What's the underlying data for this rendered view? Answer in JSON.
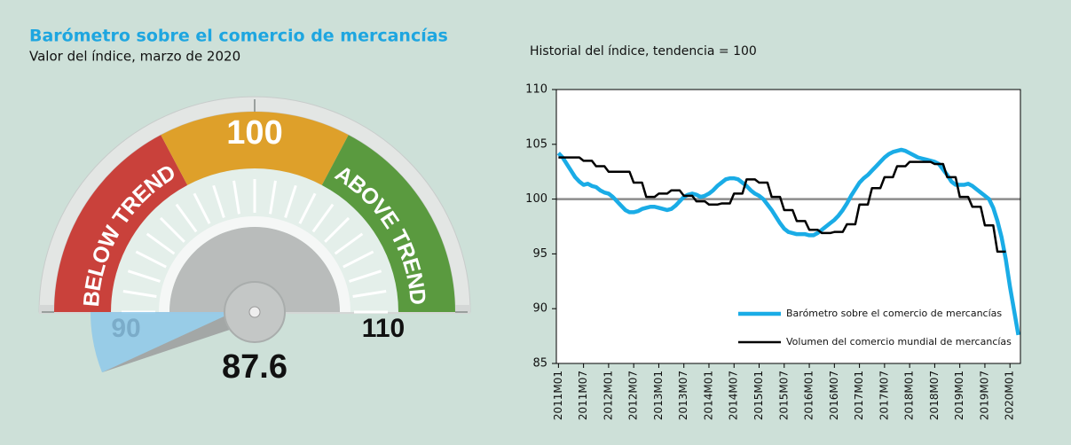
{
  "chart_data": [
    {
      "type": "gauge",
      "title": "Barómetro sobre el comercio de mercancías",
      "subtitle": "Valor del índice, marzo de 2020",
      "lim": [
        90,
        110
      ],
      "ticks": [
        90,
        100,
        110
      ],
      "value": 87.6,
      "zones": [
        {
          "label": "BELOW TREND",
          "from": 90,
          "to": 96.9,
          "color": "#c9413b"
        },
        {
          "from": 96.9,
          "to": 103.1,
          "color": "#dea02a"
        },
        {
          "label": "ABOVE TREND",
          "from": 103.1,
          "to": 110,
          "color": "#5a9a3f"
        }
      ]
    },
    {
      "type": "line",
      "title": "Historial del índice, tendencia = 100",
      "categories": [
        "2011M01",
        null,
        null,
        null,
        null,
        null,
        "2011M07",
        null,
        null,
        null,
        null,
        null,
        "2012M01",
        null,
        null,
        null,
        null,
        null,
        "2012M07",
        null,
        null,
        null,
        null,
        null,
        "2013M01",
        null,
        null,
        null,
        null,
        null,
        "2013M07",
        null,
        null,
        null,
        null,
        null,
        "2014M01",
        null,
        null,
        null,
        null,
        null,
        "2014M07",
        null,
        null,
        null,
        null,
        null,
        "2015M01",
        null,
        null,
        null,
        null,
        null,
        "2015M07",
        null,
        null,
        null,
        null,
        null,
        "2016M01",
        null,
        null,
        null,
        null,
        null,
        "2016M07",
        null,
        null,
        null,
        null,
        null,
        "2017M01",
        null,
        null,
        null,
        null,
        null,
        "2017M07",
        null,
        null,
        null,
        null,
        null,
        "2018M01",
        null,
        null,
        null,
        null,
        null,
        "2018M07",
        null,
        null,
        null,
        null,
        null,
        "2019M01",
        null,
        null,
        null,
        null,
        null,
        "2019M07",
        null,
        null,
        null,
        null,
        null,
        "2020M01",
        null,
        null
      ],
      "series": [
        {
          "name": "Barómetro sobre el comercio de mercancías",
          "color": "#1aace6",
          "values": [
            104.2,
            103.8,
            103.2,
            102.6,
            102.0,
            101.6,
            101.3,
            101.4,
            101.2,
            101.1,
            100.8,
            100.6,
            100.5,
            100.2,
            99.8,
            99.4,
            99.0,
            98.8,
            98.8,
            98.9,
            99.1,
            99.2,
            99.3,
            99.3,
            99.2,
            99.1,
            99.0,
            99.1,
            99.4,
            99.8,
            100.2,
            100.4,
            100.5,
            100.4,
            100.2,
            100.3,
            100.5,
            100.8,
            101.2,
            101.5,
            101.8,
            101.9,
            101.9,
            101.8,
            101.5,
            101.2,
            100.8,
            100.5,
            100.3,
            100.0,
            99.5,
            99.0,
            98.4,
            97.8,
            97.3,
            97.0,
            96.9,
            96.8,
            96.8,
            96.8,
            96.7,
            96.7,
            96.9,
            97.2,
            97.5,
            97.8,
            98.1,
            98.5,
            99.0,
            99.6,
            100.3,
            100.9,
            101.5,
            101.9,
            102.2,
            102.6,
            103.0,
            103.4,
            103.8,
            104.1,
            104.3,
            104.4,
            104.5,
            104.4,
            104.2,
            104.0,
            103.8,
            103.7,
            103.6,
            103.5,
            103.4,
            103.2,
            102.7,
            102.2,
            101.6,
            101.3,
            101.3,
            101.3,
            101.4,
            101.2,
            100.9,
            100.6,
            100.3,
            100.0,
            99.2,
            98.0,
            96.5,
            94.5,
            92.0,
            89.8,
            87.6
          ]
        },
        {
          "name": "Volumen del comercio mundial de mercancías",
          "color": "#000000",
          "values": [
            103.8,
            103.8,
            103.8,
            103.8,
            103.8,
            103.8,
            103.5,
            103.5,
            103.5,
            103.0,
            103.0,
            103.0,
            102.5,
            102.5,
            102.5,
            102.5,
            102.5,
            102.5,
            101.5,
            101.5,
            101.5,
            100.2,
            100.2,
            100.2,
            100.5,
            100.5,
            100.5,
            100.8,
            100.8,
            100.8,
            100.3,
            100.3,
            100.3,
            99.8,
            99.8,
            99.8,
            99.5,
            99.5,
            99.5,
            99.6,
            99.6,
            99.6,
            100.5,
            100.5,
            100.5,
            101.8,
            101.8,
            101.8,
            101.5,
            101.5,
            101.5,
            100.2,
            100.2,
            100.2,
            99.0,
            99.0,
            99.0,
            98.0,
            98.0,
            98.0,
            97.2,
            97.2,
            97.2,
            96.9,
            96.9,
            96.9,
            97.0,
            97.0,
            97.0,
            97.7,
            97.7,
            97.7,
            99.5,
            99.5,
            99.5,
            101.0,
            101.0,
            101.0,
            102.0,
            102.0,
            102.0,
            103.0,
            103.0,
            103.0,
            103.4,
            103.4,
            103.4,
            103.4,
            103.4,
            103.4,
            103.2,
            103.2,
            103.2,
            102.0,
            102.0,
            102.0,
            100.2,
            100.2,
            100.2,
            99.3,
            99.3,
            99.3,
            97.6,
            97.6,
            97.6,
            95.2,
            95.2,
            95.2,
            null,
            null,
            null
          ]
        }
      ],
      "ylim": [
        85,
        110
      ],
      "yticks": [
        85,
        90,
        95,
        100,
        105,
        110
      ],
      "reference_line": 100,
      "legend": "lower right"
    }
  ]
}
